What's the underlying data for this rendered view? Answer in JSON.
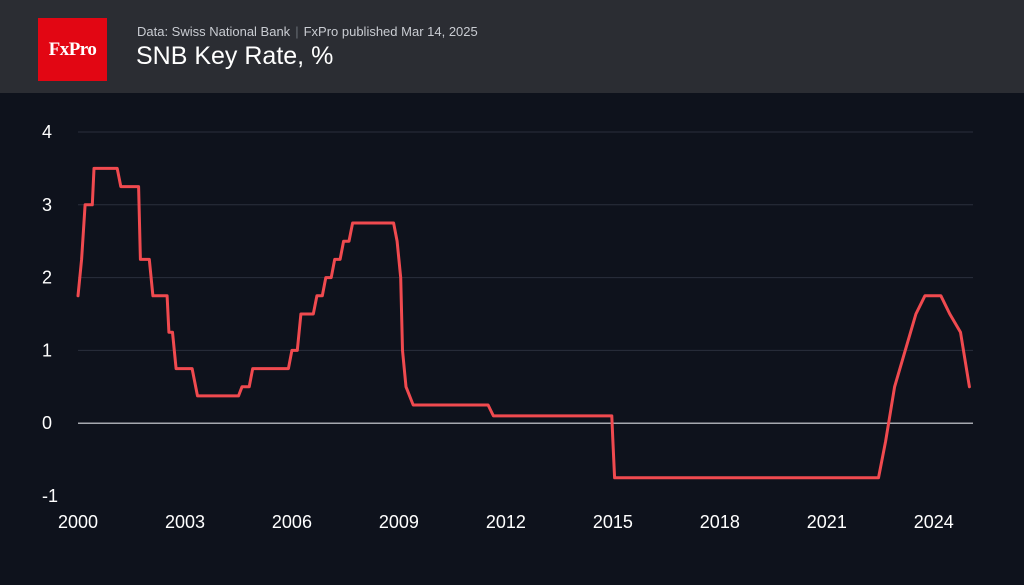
{
  "header": {
    "logo_text": "FxPro",
    "source_text": "Data: Swiss National Bank",
    "separator": "|",
    "published_text": "FxPro published Mar 14, 2025",
    "title": "SNB Key Rate, %"
  },
  "colors": {
    "line": "#f04a4f",
    "background": "#0e121c",
    "header": "#2b2d33",
    "logo": "#e20613",
    "grid": "#2a2f3c",
    "zero_line": "#d8dbe0"
  },
  "chart_data": {
    "type": "line",
    "title": "SNB Key Rate, %",
    "xlabel": "",
    "ylabel": "",
    "xlim": [
      2000,
      2025.1
    ],
    "ylim": [
      -1,
      4
    ],
    "x_ticks": [
      "2000",
      "2003",
      "2006",
      "2009",
      "2012",
      "2015",
      "2018",
      "2021",
      "2024"
    ],
    "y_ticks": [
      "4",
      "3",
      "2",
      "1",
      "0",
      "-1"
    ],
    "grid": true,
    "legend": "none",
    "series": [
      {
        "name": "SNB Key Rate",
        "x": [
          2000.0,
          2000.1,
          2000.2,
          2000.4,
          2000.45,
          2001.1,
          2001.2,
          2001.7,
          2001.75,
          2002.0,
          2002.1,
          2002.5,
          2002.55,
          2002.65,
          2002.75,
          2003.2,
          2003.35,
          2004.5,
          2004.6,
          2004.8,
          2004.9,
          2005.9,
          2006.0,
          2006.15,
          2006.25,
          2006.6,
          2006.7,
          2006.85,
          2006.95,
          2007.1,
          2007.2,
          2007.35,
          2007.45,
          2007.6,
          2007.7,
          2008.85,
          2008.95,
          2009.05,
          2009.1,
          2009.2,
          2009.4,
          2011.5,
          2011.65,
          2014.97,
          2015.0,
          2015.05,
          2022.45,
          2022.65,
          2022.9,
          2023.5,
          2023.75,
          2024.2,
          2024.45,
          2024.75,
          2025.0
        ],
        "values": [
          1.75,
          2.25,
          3.0,
          3.0,
          3.5,
          3.5,
          3.25,
          3.25,
          2.25,
          2.25,
          1.75,
          1.75,
          1.25,
          1.25,
          0.75,
          0.75,
          0.375,
          0.375,
          0.5,
          0.5,
          0.75,
          0.75,
          1.0,
          1.0,
          1.5,
          1.5,
          1.75,
          1.75,
          2.0,
          2.0,
          2.25,
          2.25,
          2.5,
          2.5,
          2.75,
          2.75,
          2.5,
          2.0,
          1.0,
          0.5,
          0.25,
          0.25,
          0.1,
          0.1,
          -0.25,
          -0.75,
          -0.75,
          -0.25,
          0.5,
          1.5,
          1.75,
          1.75,
          1.5,
          1.25,
          0.5
        ]
      }
    ]
  }
}
